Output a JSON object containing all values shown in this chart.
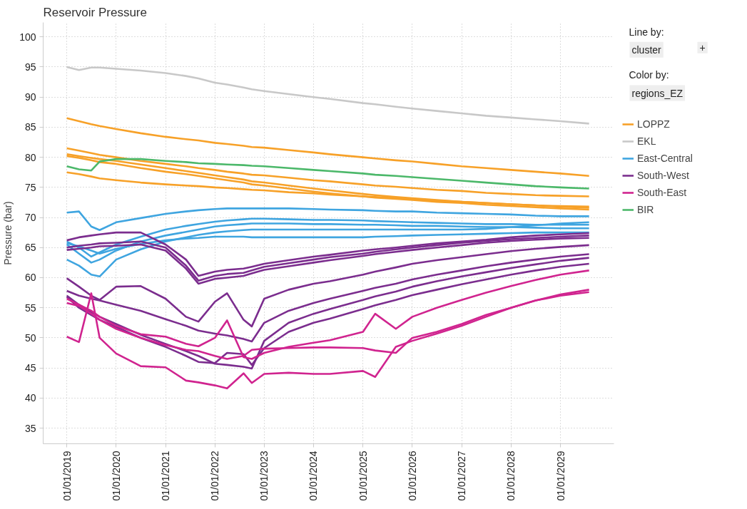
{
  "chart_data": {
    "type": "line",
    "title": "Reservoir Pressure",
    "ylabel": "Pressure (bar)",
    "annotations": [
      "Line by:",
      "cluster",
      "+",
      "Color by:",
      "regions_EZ"
    ],
    "x": [
      "2019-01",
      "2019-04",
      "2019-07",
      "2019-09",
      "2020-01",
      "2020-07",
      "2021-01",
      "2021-06",
      "2021-09",
      "2022-01",
      "2022-04",
      "2022-08",
      "2022-10",
      "2023-01",
      "2023-07",
      "2024-01",
      "2024-05",
      "2025-01",
      "2025-04",
      "2025-09",
      "2026-01",
      "2026-07",
      "2027-01",
      "2027-07",
      "2028-01",
      "2028-07",
      "2029-01",
      "2029-08"
    ],
    "xlim": [
      "2018-07-10",
      "2030-02-01"
    ],
    "xticks": [
      {
        "value": "2019-01-01",
        "label": "01/01/2019"
      },
      {
        "value": "2020-01-01",
        "label": "01/01/2020"
      },
      {
        "value": "2021-01-01",
        "label": "01/01/2021"
      },
      {
        "value": "2022-01-01",
        "label": "01/01/2022"
      },
      {
        "value": "2023-01-01",
        "label": "01/01/2023"
      },
      {
        "value": "2024-01-01",
        "label": "01/01/2024"
      },
      {
        "value": "2025-01-01",
        "label": "01/01/2025"
      },
      {
        "value": "2026-01-01",
        "label": "01/01/2026"
      },
      {
        "value": "2027-01-01",
        "label": "01/01/2027"
      },
      {
        "value": "2028-01-01",
        "label": "01/01/2028"
      },
      {
        "value": "2029-01-01",
        "label": "01/01/2029"
      }
    ],
    "ylim": [
      32.4,
      102.4
    ],
    "yticks": [
      35,
      40,
      45,
      50,
      55,
      60,
      65,
      70,
      75,
      80,
      85,
      90,
      95,
      100
    ],
    "grid": true,
    "legend": "top right",
    "marker": "none",
    "line_style": "solid",
    "series": [
      {
        "name": "LOPPZ",
        "color": "#f7a128",
        "values": [
          86.5,
          86.0,
          85.5,
          85.2,
          84.7,
          84.0,
          83.4,
          83.0,
          82.8,
          82.4,
          82.2,
          81.9,
          81.7,
          81.6,
          81.2,
          80.8,
          80.5,
          80.0,
          79.8,
          79.5,
          79.3,
          78.9,
          78.5,
          78.2,
          77.9,
          77.6,
          77.3,
          76.9
        ]
      },
      {
        "color": "#f7a128",
        "values": [
          81.5,
          81.1,
          80.7,
          80.4,
          80.0,
          79.4,
          78.9,
          78.5,
          78.2,
          77.9,
          77.6,
          77.3,
          77.1,
          77.0,
          76.6,
          76.2,
          76.0,
          75.5,
          75.3,
          75.1,
          74.9,
          74.6,
          74.4,
          74.1,
          73.9,
          73.7,
          73.6,
          73.5
        ]
      },
      {
        "color": "#f7a128",
        "values": [
          80.5,
          80.2,
          79.9,
          79.7,
          79.4,
          78.8,
          78.2,
          77.7,
          77.4,
          77.0,
          76.7,
          76.3,
          76.0,
          75.8,
          75.3,
          74.8,
          74.5,
          73.9,
          73.7,
          73.4,
          73.2,
          72.9,
          72.6,
          72.4,
          72.2,
          72.0,
          71.9,
          71.8
        ]
      },
      {
        "color": "#f7a128",
        "values": [
          80.2,
          79.9,
          79.5,
          79.2,
          78.9,
          78.2,
          77.6,
          77.2,
          76.9,
          76.5,
          76.2,
          75.8,
          75.5,
          75.3,
          74.8,
          74.3,
          74.0,
          73.5,
          73.3,
          73.1,
          72.9,
          72.6,
          72.4,
          72.1,
          71.9,
          71.7,
          71.5,
          71.3
        ]
      },
      {
        "color": "#f7a128",
        "values": [
          77.5,
          77.2,
          76.8,
          76.5,
          76.2,
          75.8,
          75.5,
          75.3,
          75.2,
          75.0,
          74.9,
          74.7,
          74.6,
          74.5,
          74.2,
          74.0,
          73.8,
          73.5,
          73.4,
          73.2,
          73.1,
          72.8,
          72.6,
          72.4,
          72.2,
          72.0,
          71.8,
          71.6
        ]
      },
      {
        "name": "EKL",
        "color": "#c8c8c8",
        "values": [
          95.0,
          94.5,
          94.9,
          94.9,
          94.7,
          94.4,
          94.0,
          93.5,
          93.1,
          92.4,
          92.1,
          91.6,
          91.3,
          91.0,
          90.5,
          90.0,
          89.7,
          89.0,
          88.8,
          88.4,
          88.1,
          87.7,
          87.3,
          86.9,
          86.6,
          86.3,
          86.0,
          85.6
        ]
      },
      {
        "name": "East-Central",
        "color": "#3fa5e0",
        "values": [
          70.8,
          71.0,
          68.5,
          67.9,
          69.2,
          69.9,
          70.6,
          71.0,
          71.2,
          71.4,
          71.5,
          71.5,
          71.5,
          71.5,
          71.5,
          71.4,
          71.3,
          71.2,
          71.1,
          71.0,
          71.0,
          70.8,
          70.7,
          70.6,
          70.5,
          70.3,
          70.2,
          70.2
        ]
      },
      {
        "color": "#3fa5e0",
        "values": [
          66.0,
          65.0,
          63.5,
          64.2,
          65.5,
          66.8,
          68.0,
          68.6,
          68.9,
          69.3,
          69.5,
          69.7,
          69.8,
          69.8,
          69.7,
          69.6,
          69.6,
          69.5,
          69.4,
          69.3,
          69.2,
          69.1,
          69.0,
          68.9,
          68.9,
          68.8,
          68.8,
          68.8
        ]
      },
      {
        "color": "#3fa5e0",
        "values": [
          65.5,
          64.0,
          62.5,
          63.0,
          64.5,
          66.0,
          67.0,
          67.6,
          68.0,
          68.5,
          68.7,
          68.9,
          69.0,
          69.0,
          69.0,
          68.9,
          68.9,
          68.8,
          68.8,
          68.7,
          68.6,
          68.6,
          68.5,
          68.4,
          68.4,
          68.3,
          68.2,
          68.2
        ]
      },
      {
        "color": "#3fa5e0",
        "values": [
          63.0,
          62.0,
          60.5,
          60.2,
          63.0,
          64.7,
          66.0,
          66.7,
          67.1,
          67.5,
          67.7,
          67.9,
          68.0,
          68.0,
          68.0,
          68.0,
          68.0,
          68.0,
          68.0,
          68.0,
          68.0,
          68.0,
          68.0,
          68.1,
          68.4,
          68.7,
          69.0,
          69.2
        ]
      },
      {
        "color": "#3fa5e0",
        "values": [
          65.7,
          65.2,
          64.5,
          64.0,
          64.8,
          65.6,
          66.2,
          66.5,
          66.6,
          66.8,
          66.8,
          66.8,
          66.7,
          66.7,
          66.7,
          66.7,
          66.7,
          66.7,
          66.8,
          66.9,
          67.0,
          67.1,
          67.2,
          67.3,
          67.4,
          67.5,
          67.5,
          67.5
        ]
      },
      {
        "name": "South-West",
        "color": "#7b2d8e",
        "values": [
          66.2,
          66.7,
          67.0,
          67.2,
          67.5,
          67.5,
          65.5,
          63.0,
          60.3,
          61.0,
          61.3,
          61.5,
          61.8,
          62.3,
          62.9,
          63.5,
          63.8,
          64.5,
          64.7,
          65.0,
          65.3,
          65.7,
          66.0,
          66.3,
          66.7,
          67.0,
          67.2,
          67.4
        ]
      },
      {
        "color": "#7b2d8e",
        "values": [
          65.0,
          65.3,
          65.5,
          65.7,
          65.8,
          66.0,
          65.0,
          62.0,
          59.5,
          60.3,
          60.6,
          60.8,
          61.2,
          61.8,
          62.4,
          63.0,
          63.4,
          64.0,
          64.3,
          64.7,
          65.0,
          65.4,
          65.8,
          66.1,
          66.4,
          66.6,
          66.8,
          67.0
        ]
      },
      {
        "color": "#7b2d8e",
        "values": [
          64.6,
          64.8,
          65.0,
          65.2,
          65.3,
          65.5,
          64.5,
          61.5,
          59.0,
          59.8,
          60.0,
          60.3,
          60.7,
          61.3,
          61.9,
          62.5,
          62.9,
          63.6,
          63.9,
          64.3,
          64.6,
          65.0,
          65.4,
          65.8,
          66.1,
          66.3,
          66.5,
          66.6
        ]
      },
      {
        "color": "#7b2d8e",
        "values": [
          59.9,
          58.5,
          57.0,
          56.3,
          58.5,
          58.6,
          56.5,
          53.5,
          52.7,
          56.0,
          57.4,
          53.0,
          51.9,
          56.5,
          58.0,
          59.0,
          59.4,
          60.5,
          61.0,
          61.7,
          62.3,
          62.9,
          63.4,
          63.9,
          64.4,
          64.8,
          65.1,
          65.4
        ]
      },
      {
        "color": "#7b2d8e",
        "values": [
          57.8,
          57.0,
          56.5,
          56.2,
          55.5,
          54.5,
          53.1,
          52.0,
          51.2,
          50.7,
          50.4,
          49.8,
          49.4,
          52.5,
          54.5,
          55.8,
          56.5,
          57.8,
          58.3,
          59.0,
          59.7,
          60.5,
          61.2,
          61.9,
          62.5,
          63.0,
          63.5,
          63.9
        ]
      },
      {
        "color": "#7b2d8e",
        "values": [
          57.0,
          55.5,
          54.3,
          53.5,
          52.3,
          50.5,
          49.0,
          47.8,
          47.0,
          45.7,
          45.5,
          45.2,
          44.9,
          49.5,
          52.5,
          54.0,
          54.8,
          56.3,
          56.9,
          57.7,
          58.5,
          59.4,
          60.2,
          60.9,
          61.6,
          62.2,
          62.8,
          63.3
        ]
      },
      {
        "color": "#7b2d8e",
        "values": [
          56.8,
          55.0,
          53.8,
          53.0,
          51.8,
          50.0,
          48.5,
          47.0,
          46.0,
          45.8,
          47.5,
          47.3,
          45.5,
          48.3,
          51.0,
          52.5,
          53.2,
          54.8,
          55.4,
          56.3,
          57.1,
          58.0,
          58.9,
          59.7,
          60.5,
          61.2,
          61.8,
          62.3
        ]
      },
      {
        "name": "South-East",
        "color": "#d0248f",
        "values": [
          56.5,
          55.5,
          54.5,
          53.5,
          52.0,
          50.6,
          50.2,
          49.0,
          48.6,
          50.0,
          52.9,
          46.8,
          46.5,
          47.5,
          48.5,
          49.2,
          49.6,
          51.0,
          54.0,
          51.5,
          53.5,
          55.0,
          56.3,
          57.5,
          58.6,
          59.6,
          60.5,
          61.2
        ]
      },
      {
        "color": "#d0248f",
        "values": [
          55.8,
          55.3,
          54.0,
          53.0,
          51.5,
          50.0,
          48.8,
          48.0,
          47.8,
          47.0,
          46.5,
          47.0,
          48.0,
          48.2,
          48.3,
          48.4,
          48.4,
          48.3,
          47.9,
          47.5,
          50.0,
          51.0,
          52.3,
          53.8,
          55.0,
          56.2,
          57.2,
          58.0
        ]
      },
      {
        "color": "#d0248f",
        "values": [
          50.2,
          49.3,
          57.4,
          50.0,
          47.4,
          45.3,
          45.1,
          42.9,
          42.6,
          42.1,
          41.6,
          44.1,
          42.5,
          44.0,
          44.2,
          44.0,
          44.0,
          44.5,
          43.5,
          48.5,
          49.5,
          50.7,
          52.0,
          53.5,
          55.0,
          56.2,
          57.0,
          57.6
        ]
      },
      {
        "name": "BIR",
        "color": "#4cb86a",
        "values": [
          78.5,
          78.0,
          77.8,
          79.3,
          79.7,
          79.7,
          79.4,
          79.2,
          79.0,
          78.9,
          78.8,
          78.7,
          78.6,
          78.5,
          78.2,
          77.9,
          77.7,
          77.3,
          77.1,
          76.9,
          76.7,
          76.4,
          76.1,
          75.8,
          75.5,
          75.2,
          75.0,
          74.8
        ]
      }
    ]
  }
}
